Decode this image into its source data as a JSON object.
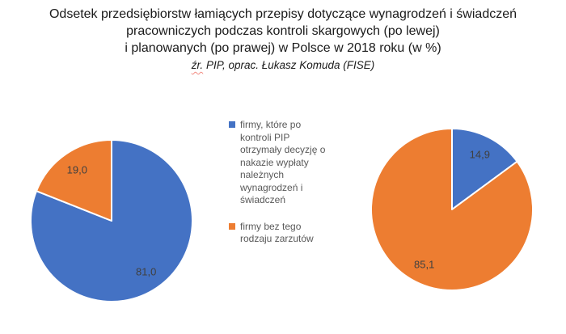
{
  "title": {
    "lines": [
      "Odsetek przedsiębiorstw łamiących przepisy dotyczące wynagrodzeń i świadczeń",
      "pracowniczych podczas kontroli skargowych (po lewej)",
      "i planowanych (po prawej) w Polsce w 2018 roku (w %)"
    ],
    "source_marked": "źr.",
    "source_rest": " PIP, oprac. Łukasz Komuda (FISE)"
  },
  "colors": {
    "blue": "#4472C4",
    "orange": "#ED7D31",
    "data_label": "#404040",
    "legend_text": "#595959",
    "title_text": "#1A1A1A",
    "spellcheck_underline": "#F28B82",
    "slice_border": "#FFFFFF"
  },
  "legend": {
    "items": [
      {
        "label": "firmy, które po kontroli PIP otrzymały decyzję o nakazie wypłaty należnych wynagrodzeń i świadczeń",
        "color": "#4472C4"
      },
      {
        "label": "firmy bez tego rodzaju zarzutów",
        "color": "#ED7D31"
      }
    ]
  },
  "chart_data": [
    {
      "type": "pie",
      "name": "kontrole skargowe (po lewej)",
      "categories": [
        "firmy, które po kontroli PIP otrzymały decyzję o nakazie wypłaty należnych wynagrodzeń i świadczeń",
        "firmy bez tego rodzaju zarzutów"
      ],
      "values": [
        81.0,
        19.0
      ],
      "labels": [
        "81,0",
        "19,0"
      ],
      "colors": [
        "#4472C4",
        "#ED7D31"
      ],
      "start_angle_deg": 0,
      "direction": "clockwise",
      "legend": "shared-center"
    },
    {
      "type": "pie",
      "name": "kontrole planowane (po prawej)",
      "categories": [
        "firmy, które po kontroli PIP otrzymały decyzję o nakazie wypłaty należnych wynagrodzeń i świadczeń",
        "firmy bez tego rodzaju zarzutów"
      ],
      "values": [
        14.9,
        85.1
      ],
      "labels": [
        "14,9",
        "85,1"
      ],
      "colors": [
        "#4472C4",
        "#ED7D31"
      ],
      "start_angle_deg": 0,
      "direction": "clockwise",
      "legend": "shared-center"
    }
  ]
}
